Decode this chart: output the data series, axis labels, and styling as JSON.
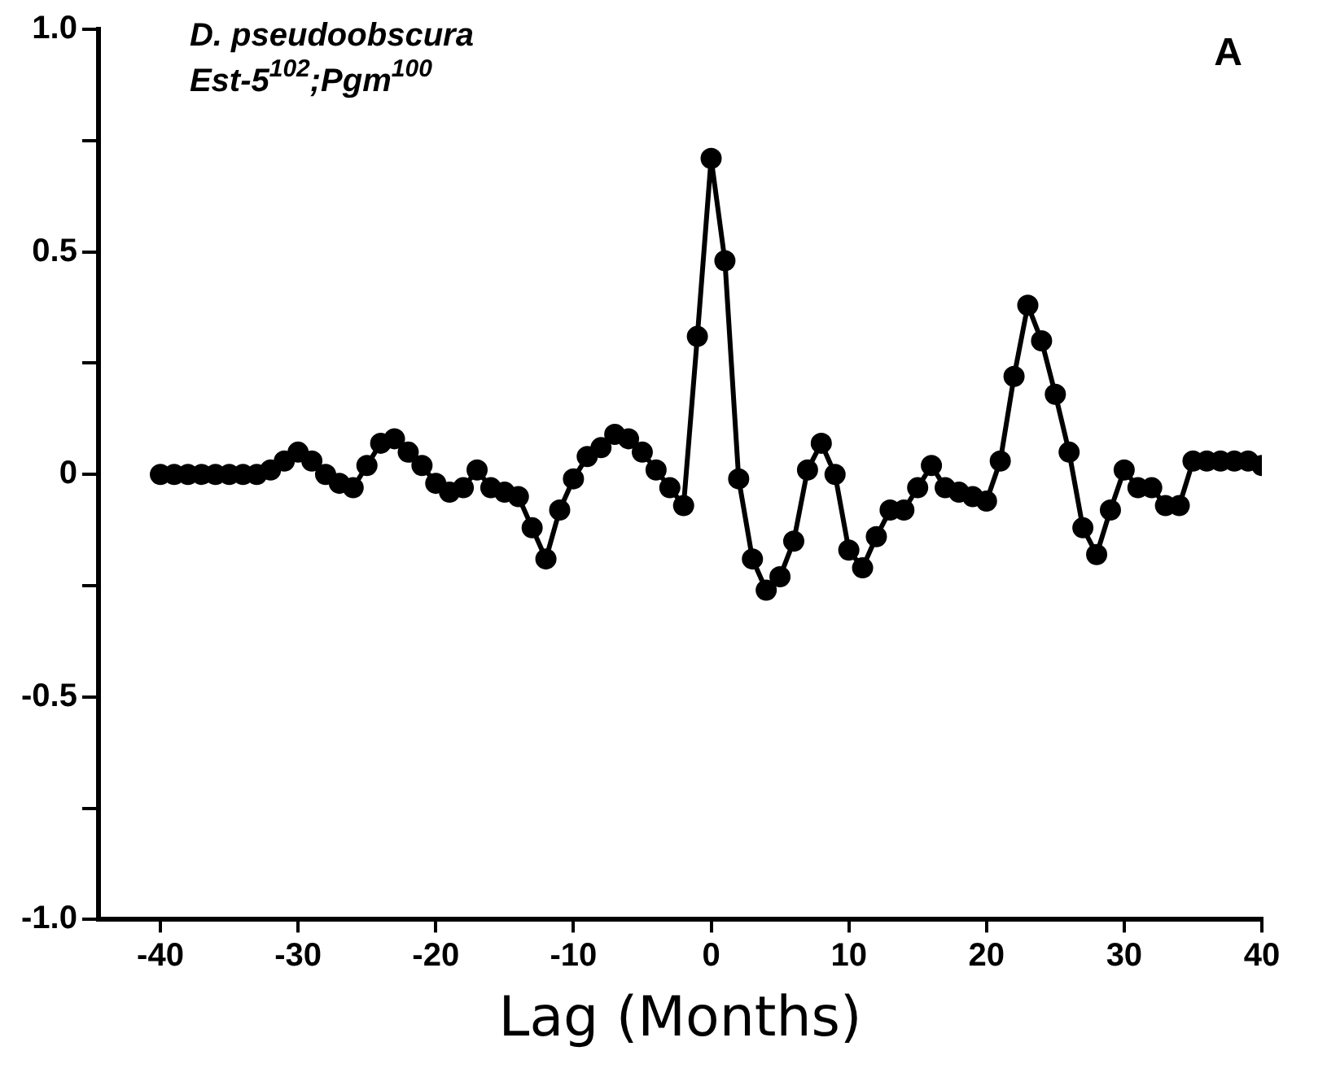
{
  "chart_data": {
    "type": "line",
    "xlabel": "Lag (Months)",
    "annotations": [
      "D. pseudoobscura",
      "Est-5$^{102}$;Pgm$^{100}$",
      "A"
    ],
    "x": [
      -40,
      -39,
      -38,
      -37,
      -36,
      -35,
      -34,
      -33,
      -32,
      -31,
      -30,
      -29,
      -28,
      -27,
      -26,
      -25,
      -24,
      -23,
      -22,
      -21,
      -20,
      -19,
      -18,
      -17,
      -16,
      -15,
      -14,
      -13,
      -12,
      -11,
      -10,
      -9,
      -8,
      -7,
      -6,
      -5,
      -4,
      -3,
      -2,
      -1,
      0,
      1,
      2,
      3,
      4,
      5,
      6,
      7,
      8,
      9,
      10,
      11,
      12,
      13,
      14,
      15,
      16,
      17,
      18,
      19,
      20,
      21,
      22,
      23,
      24,
      25,
      26,
      27,
      28,
      29,
      30,
      31,
      32,
      33,
      34,
      35,
      36,
      37,
      38,
      39,
      40
    ],
    "series": [
      {
        "color": "#000000",
        "values": [
          0,
          0,
          0,
          0,
          0,
          0,
          0,
          0,
          0.01,
          0.03,
          0.05,
          0.03,
          0.0,
          -0.02,
          -0.03,
          0.02,
          0.07,
          0.08,
          0.05,
          0.02,
          -0.02,
          -0.04,
          -0.03,
          0.01,
          -0.03,
          -0.04,
          -0.05,
          -0.12,
          -0.19,
          -0.08,
          -0.01,
          0.04,
          0.06,
          0.09,
          0.08,
          0.05,
          0.01,
          -0.03,
          -0.07,
          0.31,
          0.71,
          0.48,
          -0.01,
          -0.19,
          -0.26,
          -0.23,
          -0.15,
          0.01,
          0.07,
          0.0,
          -0.17,
          -0.21,
          -0.14,
          -0.08,
          -0.08,
          -0.03,
          0.02,
          -0.03,
          -0.04,
          -0.05,
          -0.06,
          0.03,
          0.22,
          0.38,
          0.3,
          0.18,
          0.05,
          -0.12,
          -0.18,
          -0.08,
          0.01,
          -0.03,
          -0.03,
          -0.07,
          -0.07,
          0.03,
          0.03,
          0.03,
          0.03,
          0.03,
          0.02
        ]
      }
    ],
    "xlim": [
      -44.5,
      40
    ],
    "xticks": [
      -40,
      -30,
      -20,
      -10,
      0,
      10,
      20,
      30,
      40
    ],
    "ylim": [
      -1,
      1
    ],
    "yticks": [
      {
        "value": -1,
        "label": "-1.0"
      },
      {
        "value": -0.75,
        "label": null
      },
      {
        "value": -0.5,
        "label": "-0.5"
      },
      {
        "value": -0.25,
        "label": null
      },
      0,
      {
        "value": 0.25,
        "label": null
      },
      {
        "value": 0.5,
        "label": "0.5"
      },
      {
        "value": 0.75,
        "label": null
      },
      {
        "value": 1,
        "label": "1.0"
      }
    ],
    "grid": false,
    "legend": false,
    "marker": "circle",
    "line_style": "solid"
  }
}
